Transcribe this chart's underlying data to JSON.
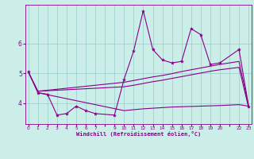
{
  "xlabel": "Windchill (Refroidissement éolien,°C)",
  "bg_color": "#cceee8",
  "line_color": "#880088",
  "grid_color": "#99cccc",
  "xtick_labels": [
    "0",
    "1",
    "2",
    "3",
    "4",
    "5",
    "6",
    "7",
    "",
    "9",
    "10",
    "11",
    "12",
    "13",
    "14",
    "15",
    "16",
    "17",
    "18",
    "19",
    "20",
    "",
    "22",
    "23"
  ],
  "xlim": [
    -0.3,
    23.3
  ],
  "ylim": [
    3.3,
    7.3
  ],
  "yticks": [
    4,
    5,
    6
  ],
  "series": {
    "line1_wiggly": {
      "x": [
        0,
        1,
        2,
        3,
        4,
        5,
        6,
        7,
        9,
        10,
        11,
        12,
        13,
        14,
        15,
        16,
        17,
        18,
        19,
        20,
        22,
        23
      ],
      "y": [
        5.05,
        4.35,
        4.3,
        3.6,
        3.65,
        3.9,
        3.75,
        3.65,
        3.6,
        4.8,
        5.75,
        7.1,
        5.8,
        5.45,
        5.35,
        5.4,
        6.5,
        6.3,
        5.3,
        5.35,
        5.8,
        3.9
      ]
    },
    "line2_smooth": {
      "x": [
        0,
        1,
        10,
        11,
        12,
        13,
        14,
        15,
        16,
        17,
        18,
        19,
        20,
        22,
        23
      ],
      "y": [
        5.05,
        4.4,
        4.7,
        4.76,
        4.82,
        4.88,
        4.93,
        4.99,
        5.06,
        5.12,
        5.18,
        5.24,
        5.3,
        5.4,
        3.9
      ]
    },
    "line3_smooth": {
      "x": [
        0,
        1,
        10,
        11,
        12,
        13,
        14,
        15,
        16,
        17,
        18,
        19,
        20,
        22,
        23
      ],
      "y": [
        5.05,
        4.4,
        4.55,
        4.6,
        4.66,
        4.72,
        4.77,
        4.83,
        4.89,
        4.95,
        5.01,
        5.07,
        5.12,
        5.2,
        3.85
      ]
    },
    "line4_flat": {
      "x": [
        1,
        10,
        11,
        12,
        13,
        14,
        15,
        16,
        17,
        18,
        19,
        20,
        22,
        23
      ],
      "y": [
        4.35,
        3.75,
        3.78,
        3.81,
        3.83,
        3.85,
        3.87,
        3.88,
        3.89,
        3.9,
        3.91,
        3.92,
        3.95,
        3.9
      ]
    }
  }
}
